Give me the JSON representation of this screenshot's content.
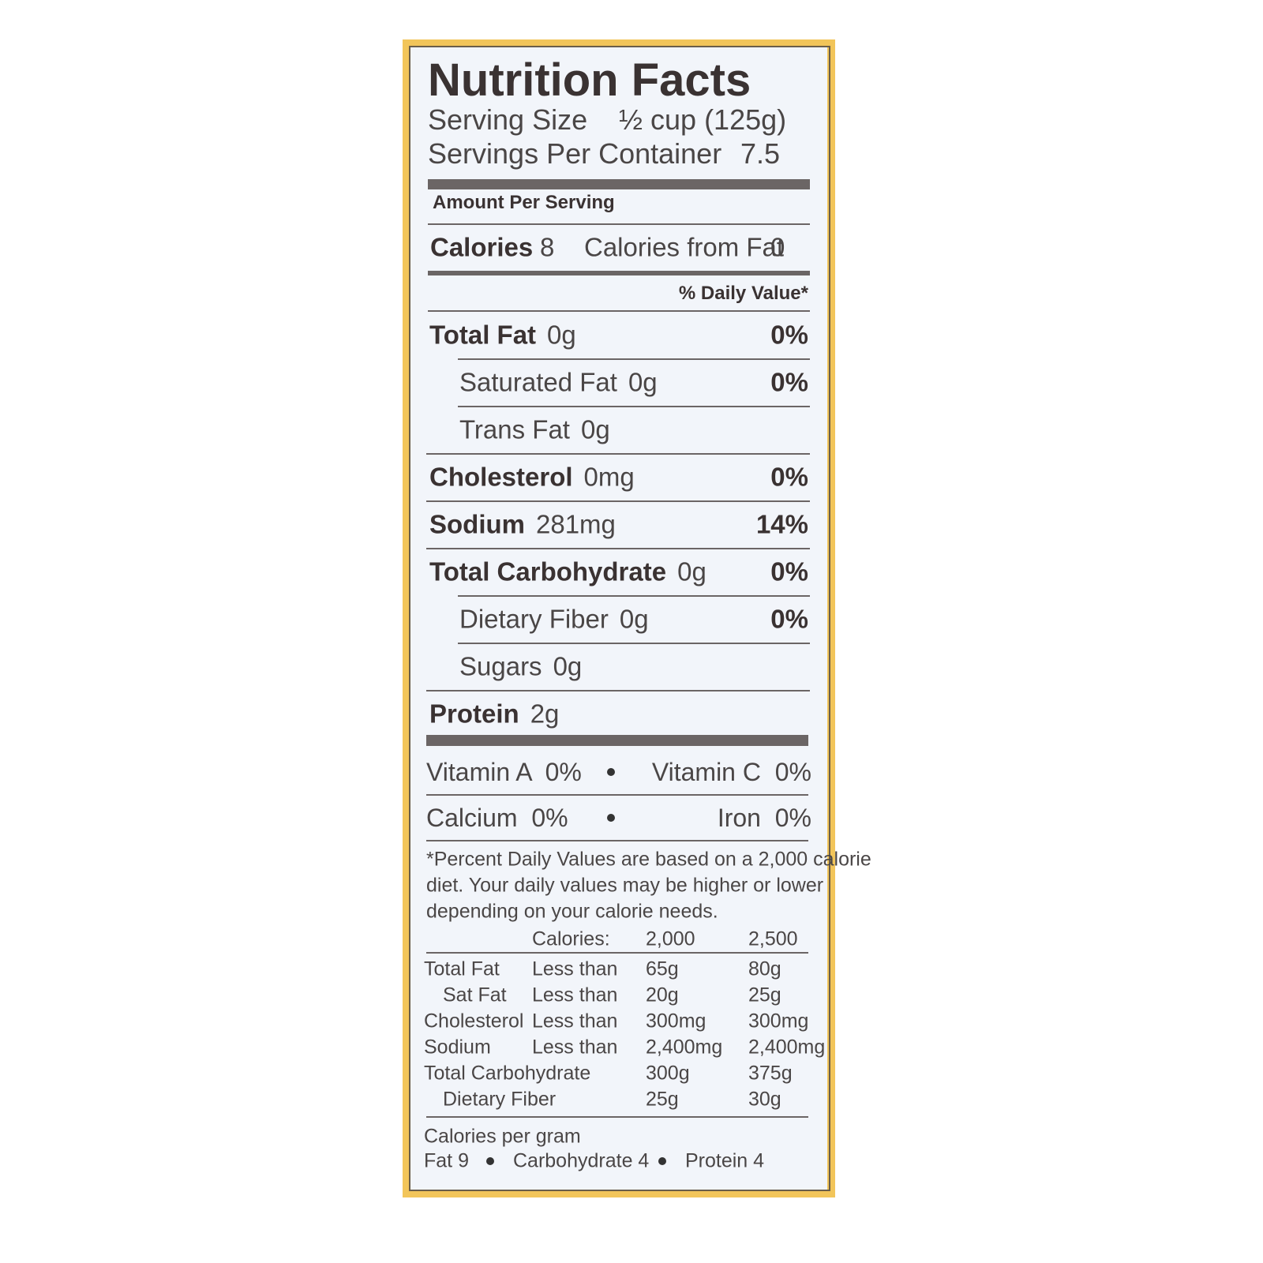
{
  "title": "Nutrition Facts",
  "serving_size": {
    "label": "Serving Size",
    "value": "½ cup (125g)"
  },
  "servings_per_container": {
    "label": "Servings Per Container",
    "value": "7.5"
  },
  "amount_per_serving": "Amount Per Serving",
  "calories": {
    "label": "Calories",
    "value": "8"
  },
  "calories_from_fat": {
    "label": "Calories from Fat",
    "value": "0"
  },
  "daily_value_header": "% Daily Value*",
  "nutrients": [
    {
      "name": "Total Fat",
      "amount": "0g",
      "dv": "0%",
      "bold": true,
      "indent": false
    },
    {
      "name": "Saturated Fat",
      "amount": "0g",
      "dv": "0%",
      "bold": false,
      "indent": true
    },
    {
      "name": "Trans Fat",
      "amount": "0g",
      "bold": false,
      "indent": true
    },
    {
      "name": "Cholesterol",
      "amount": "0mg",
      "dv": "0%",
      "bold": true,
      "indent": false
    },
    {
      "name": "Sodium",
      "amount": "281mg",
      "dv": "14%",
      "bold": true,
      "indent": false
    },
    {
      "name": "Total Carbohydrate",
      "amount": "0g",
      "dv": "0%",
      "bold": true,
      "indent": false
    },
    {
      "name": "Dietary Fiber",
      "amount": "0g",
      "dv": "0%",
      "bold": false,
      "indent": true
    },
    {
      "name": "Sugars",
      "amount": "0g",
      "bold": false,
      "indent": true
    },
    {
      "name": "Protein",
      "amount": "2g",
      "bold": true,
      "indent": false
    }
  ],
  "vitamins": [
    [
      "Vitamin A  0%",
      "Vitamin C  0%"
    ],
    [
      "Calcium  0%",
      "Iron  0%"
    ]
  ],
  "footnote": [
    "*Percent Daily Values are based on a 2,000 calorie",
    "diet. Your daily values may be higher or lower",
    "depending on your calorie needs."
  ],
  "reference_table": {
    "header": [
      "Calories:",
      "2,000",
      "2,500"
    ],
    "rows": [
      {
        "cells": [
          "Total Fat",
          "Less than",
          "65g",
          "80g"
        ],
        "indent": false
      },
      {
        "cells": [
          "Sat Fat",
          "Less than",
          "20g",
          "25g"
        ],
        "indent": true
      },
      {
        "cells": [
          "Cholesterol",
          "Less than",
          "300mg",
          "300mg"
        ],
        "indent": false
      },
      {
        "cells": [
          "Sodium",
          "Less than",
          "2,400mg",
          "2,400mg"
        ],
        "indent": false
      },
      {
        "cells": [
          "Total Carbohydrate",
          null,
          "300g",
          "375g"
        ],
        "indent": false
      },
      {
        "cells": [
          "Dietary Fiber",
          null,
          "25g",
          "30g"
        ],
        "indent": true
      }
    ]
  },
  "calories_per_gram": {
    "label": "Calories per gram",
    "items": [
      "Fat 9",
      "Carbohydrate 4",
      "Protein 4"
    ]
  }
}
